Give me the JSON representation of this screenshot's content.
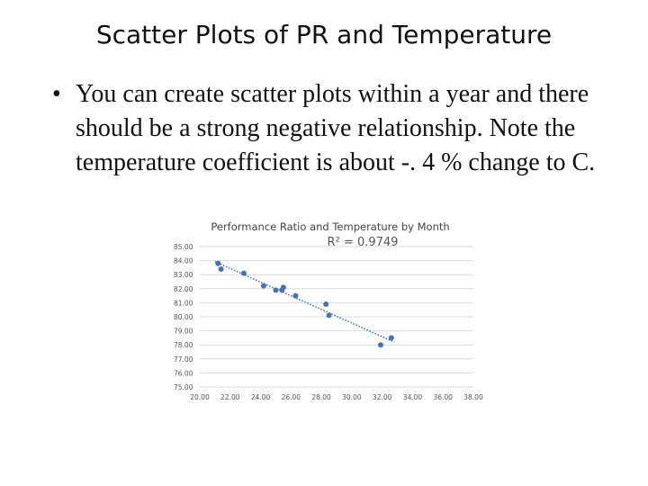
{
  "slide": {
    "title": "Scatter Plots of PR and Temperature",
    "bullet_symbol": "•",
    "bullet_text": "You can create scatter plots within a year and there should be a strong negative relationship. Note the temperature coefficient is about -. 4 % change to C."
  },
  "chart_data": {
    "type": "scatter",
    "title": "Performance Ratio and Temperature by Month",
    "annotation": "R² = 0.9749",
    "xlabel": "",
    "ylabel": "",
    "xlim": [
      20,
      38
    ],
    "ylim": [
      75,
      85
    ],
    "x_ticks": [
      "20.00",
      "22.00",
      "24.00",
      "26.00",
      "28.00",
      "30.00",
      "32.00",
      "34.00",
      "36.00",
      "38.00"
    ],
    "y_ticks": [
      "85.00",
      "84.00",
      "83.00",
      "82.00",
      "81.00",
      "80.00",
      "79.00",
      "78.00",
      "77.00",
      "76.00",
      "75.00"
    ],
    "points": [
      {
        "x": 21.2,
        "y": 83.8
      },
      {
        "x": 21.4,
        "y": 83.4
      },
      {
        "x": 22.9,
        "y": 83.1
      },
      {
        "x": 24.2,
        "y": 82.2
      },
      {
        "x": 25.0,
        "y": 81.9
      },
      {
        "x": 25.4,
        "y": 81.9
      },
      {
        "x": 25.5,
        "y": 82.1
      },
      {
        "x": 26.3,
        "y": 81.5
      },
      {
        "x": 28.3,
        "y": 80.9
      },
      {
        "x": 28.5,
        "y": 80.1
      },
      {
        "x": 31.9,
        "y": 78.0
      },
      {
        "x": 32.6,
        "y": 78.5
      }
    ],
    "trendline": {
      "x_range": [
        21.0,
        32.8
      ],
      "style": "dotted"
    },
    "grid": true,
    "colors": {
      "points": "#4a72b0",
      "trendline": "#4a72b0",
      "grid": "#d9d9d9"
    }
  }
}
